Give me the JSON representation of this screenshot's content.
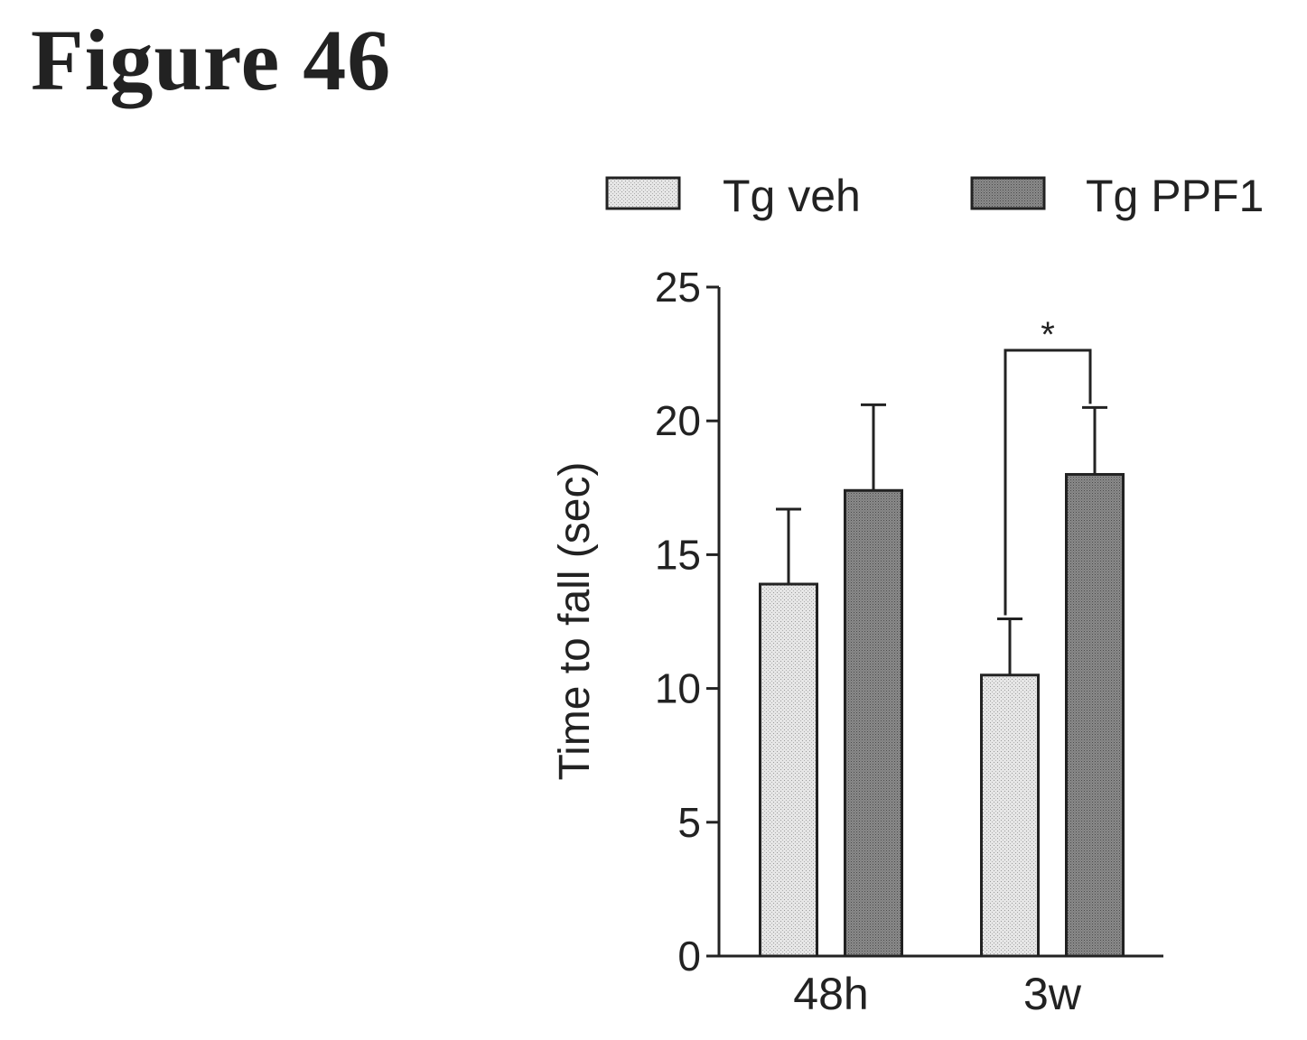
{
  "figure": {
    "title": "Figure 46"
  },
  "chart_data": {
    "type": "bar",
    "categories": [
      "48h",
      "3w"
    ],
    "series": [
      {
        "name": "Tg veh",
        "values": [
          13.9,
          10.5
        ],
        "errors": [
          2.8,
          2.1
        ],
        "color": "#e2e2e2"
      },
      {
        "name": "Tg PPF1",
        "values": [
          17.4,
          18.0
        ],
        "errors": [
          3.2,
          2.5
        ],
        "color": "#8c8c8c"
      }
    ],
    "ylabel": "Time to fall (sec)",
    "xlabel": "",
    "ylim": [
      0,
      25
    ],
    "yticks": [
      0,
      5,
      10,
      15,
      20,
      25
    ],
    "legend": "top",
    "grid": false,
    "annotations": [
      {
        "text": "*",
        "category": "3w",
        "between_series": [
          "Tg veh",
          "Tg PPF1"
        ]
      }
    ]
  }
}
